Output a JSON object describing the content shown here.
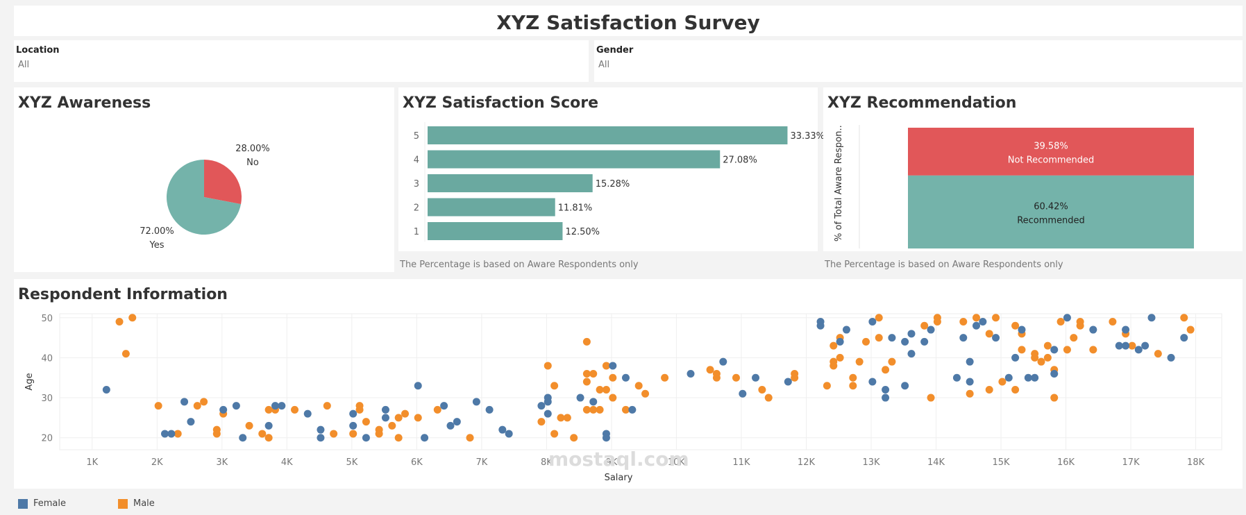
{
  "title": "XYZ Satisfaction Survey",
  "filters": {
    "location": {
      "label": "Location",
      "value": "All"
    },
    "gender": {
      "label": "Gender",
      "value": "All"
    }
  },
  "watermark": "mostaql.com",
  "colors": {
    "teal": "#74b3aa",
    "red": "#e15759",
    "bar": "#6aa9a0",
    "female": "#4e79a7",
    "male": "#f28e2b"
  },
  "awareness": {
    "title": "XYZ Awareness"
  },
  "satisfaction": {
    "title": "XYZ Satisfaction Score",
    "footnote": "The Percentage is based on Aware Respondents only"
  },
  "recommendation": {
    "title": "XYZ Recommendation",
    "footnote": "The Percentage is based on Aware Respondents only",
    "ylabel": "% of Total Aware Respon.."
  },
  "respondent": {
    "title": "Respondent Information"
  },
  "legend": [
    {
      "label": "Female",
      "color": "#4e79a7"
    },
    {
      "label": "Male",
      "color": "#f28e2b"
    }
  ],
  "chart_data": [
    {
      "type": "pie",
      "title": "XYZ Awareness",
      "slices": [
        {
          "label": "No",
          "value": 28.0,
          "value_label": "28.00%",
          "color": "#e15759"
        },
        {
          "label": "Yes",
          "value": 72.0,
          "value_label": "72.00%",
          "color": "#74b3aa"
        }
      ]
    },
    {
      "type": "bar",
      "title": "XYZ Satisfaction Score",
      "orientation": "horizontal",
      "categories": [
        "5",
        "4",
        "3",
        "2",
        "1"
      ],
      "values": [
        33.33,
        27.08,
        15.28,
        11.81,
        12.5
      ],
      "value_labels": [
        "33.33%",
        "27.08%",
        "15.28%",
        "11.81%",
        "12.50%"
      ],
      "xlim": [
        0,
        36
      ]
    },
    {
      "type": "bar",
      "title": "XYZ Recommendation",
      "stacked": true,
      "ylabel": "% of Total Aware Respon..",
      "series": [
        {
          "name": "Not Recommended",
          "values": [
            39.58
          ],
          "value_label": "39.58%",
          "color": "#e15759"
        },
        {
          "name": "Recommended",
          "values": [
            60.42
          ],
          "value_label": "60.42%",
          "color": "#74b3aa"
        }
      ],
      "ylim": [
        0,
        100
      ]
    },
    {
      "type": "scatter",
      "title": "Respondent Information",
      "xlabel": "Salary",
      "ylabel": "Age",
      "xlim": [
        500,
        18400
      ],
      "ylim": [
        17,
        51
      ],
      "xticks": [
        1000,
        2000,
        3000,
        4000,
        5000,
        6000,
        7000,
        8000,
        9000,
        10000,
        11000,
        12000,
        13000,
        14000,
        15000,
        16000,
        17000,
        18000
      ],
      "xtick_labels": [
        "1K",
        "2K",
        "3K",
        "4K",
        "5K",
        "6K",
        "7K",
        "8K",
        "9K",
        "10K",
        "11K",
        "12K",
        "13K",
        "14K",
        "15K",
        "16K",
        "17K",
        "18K"
      ],
      "yticks": [
        20,
        30,
        40,
        50
      ],
      "ytick_labels": [
        "20",
        "30",
        "40",
        "50"
      ],
      "grid": true,
      "series": [
        {
          "name": "Female",
          "color": "#4e79a7",
          "points": [
            [
              1220,
              32
            ],
            [
              2120,
              21
            ],
            [
              2220,
              21
            ],
            [
              2420,
              29
            ],
            [
              2520,
              24
            ],
            [
              3020,
              27
            ],
            [
              3220,
              28
            ],
            [
              3320,
              20
            ],
            [
              3720,
              23
            ],
            [
              3820,
              28
            ],
            [
              3920,
              28
            ],
            [
              4320,
              26
            ],
            [
              4520,
              22
            ],
            [
              4520,
              20
            ],
            [
              5020,
              23
            ],
            [
              5020,
              26
            ],
            [
              5220,
              20
            ],
            [
              5520,
              25
            ],
            [
              5520,
              27
            ],
            [
              6020,
              33
            ],
            [
              6120,
              20
            ],
            [
              6420,
              28
            ],
            [
              6520,
              23
            ],
            [
              6620,
              24
            ],
            [
              6920,
              29
            ],
            [
              7120,
              27
            ],
            [
              7320,
              22
            ],
            [
              7420,
              21
            ],
            [
              7920,
              28
            ],
            [
              8020,
              29
            ],
            [
              8020,
              30
            ],
            [
              8020,
              26
            ],
            [
              8520,
              30
            ],
            [
              8720,
              29
            ],
            [
              8920,
              21
            ],
            [
              8920,
              20
            ],
            [
              9020,
              38
            ],
            [
              9220,
              35
            ],
            [
              9320,
              27
            ],
            [
              10220,
              36
            ],
            [
              10720,
              39
            ],
            [
              11020,
              31
            ],
            [
              11220,
              35
            ],
            [
              11720,
              34
            ],
            [
              12220,
              49
            ],
            [
              12220,
              48
            ],
            [
              12520,
              44
            ],
            [
              12620,
              47
            ],
            [
              13020,
              49
            ],
            [
              13020,
              34
            ],
            [
              13220,
              32
            ],
            [
              13220,
              30
            ],
            [
              13320,
              45
            ],
            [
              13520,
              33
            ],
            [
              13520,
              44
            ],
            [
              13620,
              41
            ],
            [
              13620,
              46
            ],
            [
              13820,
              44
            ],
            [
              13920,
              47
            ],
            [
              14320,
              35
            ],
            [
              14420,
              45
            ],
            [
              14520,
              39
            ],
            [
              14520,
              34
            ],
            [
              14620,
              48
            ],
            [
              14720,
              49
            ],
            [
              14920,
              45
            ],
            [
              15120,
              35
            ],
            [
              15220,
              40
            ],
            [
              15320,
              47
            ],
            [
              15420,
              35
            ],
            [
              15520,
              35
            ],
            [
              15820,
              42
            ],
            [
              15820,
              36
            ],
            [
              16020,
              50
            ],
            [
              16420,
              47
            ],
            [
              16820,
              43
            ],
            [
              16920,
              47
            ],
            [
              16920,
              43
            ],
            [
              17120,
              42
            ],
            [
              17220,
              43
            ],
            [
              17320,
              50
            ],
            [
              17620,
              40
            ],
            [
              17820,
              45
            ]
          ]
        },
        {
          "name": "Male",
          "color": "#f28e2b",
          "points": [
            [
              1420,
              49
            ],
            [
              1520,
              41
            ],
            [
              1620,
              50
            ],
            [
              2020,
              28
            ],
            [
              2320,
              21
            ],
            [
              2620,
              28
            ],
            [
              2720,
              29
            ],
            [
              2920,
              21
            ],
            [
              2920,
              22
            ],
            [
              3020,
              26
            ],
            [
              3420,
              23
            ],
            [
              3620,
              21
            ],
            [
              3720,
              20
            ],
            [
              3720,
              27
            ],
            [
              3820,
              27
            ],
            [
              4120,
              27
            ],
            [
              4620,
              28
            ],
            [
              4720,
              21
            ],
            [
              5020,
              21
            ],
            [
              5120,
              28
            ],
            [
              5120,
              27
            ],
            [
              5220,
              24
            ],
            [
              5420,
              22
            ],
            [
              5420,
              21
            ],
            [
              5620,
              23
            ],
            [
              5720,
              20
            ],
            [
              5720,
              25
            ],
            [
              5820,
              26
            ],
            [
              6020,
              25
            ],
            [
              6320,
              27
            ],
            [
              6820,
              20
            ],
            [
              7920,
              24
            ],
            [
              8020,
              38
            ],
            [
              8120,
              21
            ],
            [
              8120,
              33
            ],
            [
              8220,
              25
            ],
            [
              8320,
              25
            ],
            [
              8420,
              20
            ],
            [
              8620,
              44
            ],
            [
              8620,
              36
            ],
            [
              8620,
              27
            ],
            [
              8620,
              34
            ],
            [
              8720,
              27
            ],
            [
              8720,
              36
            ],
            [
              8820,
              32
            ],
            [
              8820,
              27
            ],
            [
              8920,
              32
            ],
            [
              8920,
              38
            ],
            [
              9020,
              30
            ],
            [
              9020,
              35
            ],
            [
              9220,
              27
            ],
            [
              9420,
              33
            ],
            [
              9520,
              31
            ],
            [
              9820,
              35
            ],
            [
              10520,
              37
            ],
            [
              10620,
              35
            ],
            [
              10620,
              36
            ],
            [
              10920,
              35
            ],
            [
              11320,
              32
            ],
            [
              11420,
              30
            ],
            [
              11820,
              36
            ],
            [
              11820,
              35
            ],
            [
              12320,
              33
            ],
            [
              12420,
              39
            ],
            [
              12420,
              38
            ],
            [
              12420,
              43
            ],
            [
              12520,
              40
            ],
            [
              12520,
              45
            ],
            [
              12720,
              33
            ],
            [
              12720,
              35
            ],
            [
              12820,
              39
            ],
            [
              12920,
              44
            ],
            [
              13120,
              50
            ],
            [
              13120,
              45
            ],
            [
              13220,
              37
            ],
            [
              13320,
              39
            ],
            [
              13820,
              48
            ],
            [
              13920,
              30
            ],
            [
              14020,
              50
            ],
            [
              14020,
              49
            ],
            [
              14420,
              49
            ],
            [
              14520,
              31
            ],
            [
              14620,
              50
            ],
            [
              14820,
              46
            ],
            [
              14820,
              32
            ],
            [
              14920,
              50
            ],
            [
              15020,
              34
            ],
            [
              15220,
              32
            ],
            [
              15220,
              48
            ],
            [
              15320,
              42
            ],
            [
              15320,
              46
            ],
            [
              15520,
              40
            ],
            [
              15520,
              41
            ],
            [
              15620,
              39
            ],
            [
              15720,
              40
            ],
            [
              15720,
              43
            ],
            [
              15820,
              30
            ],
            [
              15820,
              37
            ],
            [
              15920,
              49
            ],
            [
              16020,
              42
            ],
            [
              16120,
              45
            ],
            [
              16220,
              48
            ],
            [
              16220,
              49
            ],
            [
              16420,
              42
            ],
            [
              16720,
              49
            ],
            [
              16920,
              46
            ],
            [
              17020,
              43
            ],
            [
              17420,
              41
            ],
            [
              17820,
              50
            ],
            [
              17920,
              47
            ]
          ]
        }
      ]
    }
  ]
}
